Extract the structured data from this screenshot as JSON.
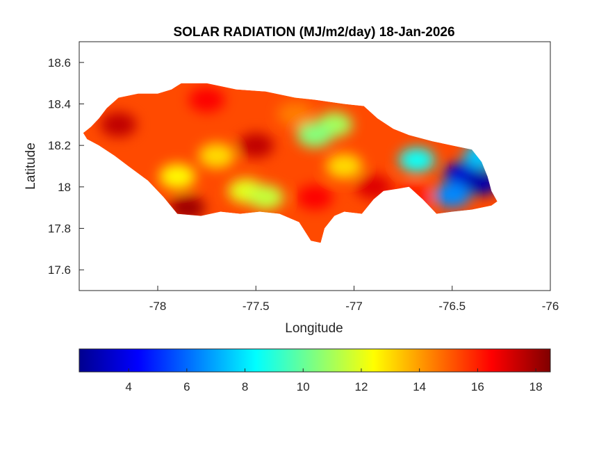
{
  "title": "SOLAR RADIATION (MJ/m2/day) 18-Jan-2026",
  "map": {
    "xlabel": "Longitude",
    "ylabel": "Latitude",
    "xlim": [
      -78.4,
      -76
    ],
    "ylim": [
      17.5,
      18.7
    ],
    "xticks": [
      "-78",
      "-77.5",
      "-77",
      "-76.5",
      "-76"
    ],
    "yticks": [
      "17.6",
      "17.8",
      "18",
      "18.2",
      "18.4",
      "18.6"
    ],
    "region": "Jamaica",
    "outline_lonlat": [
      [
        -78.38,
        18.26
      ],
      [
        -78.34,
        18.29
      ],
      [
        -78.3,
        18.33
      ],
      [
        -78.26,
        18.38
      ],
      [
        -78.2,
        18.43
      ],
      [
        -78.1,
        18.45
      ],
      [
        -78.0,
        18.45
      ],
      [
        -77.93,
        18.47
      ],
      [
        -77.88,
        18.5
      ],
      [
        -77.75,
        18.5
      ],
      [
        -77.6,
        18.47
      ],
      [
        -77.45,
        18.46
      ],
      [
        -77.3,
        18.43
      ],
      [
        -77.2,
        18.42
      ],
      [
        -77.05,
        18.4
      ],
      [
        -76.95,
        18.39
      ],
      [
        -76.88,
        18.33
      ],
      [
        -76.8,
        18.28
      ],
      [
        -76.72,
        18.25
      ],
      [
        -76.6,
        18.22
      ],
      [
        -76.5,
        18.2
      ],
      [
        -76.4,
        18.18
      ],
      [
        -76.35,
        18.12
      ],
      [
        -76.32,
        18.05
      ],
      [
        -76.3,
        17.98
      ],
      [
        -76.27,
        17.93
      ],
      [
        -76.3,
        17.91
      ],
      [
        -76.4,
        17.89
      ],
      [
        -76.5,
        17.88
      ],
      [
        -76.58,
        17.87
      ],
      [
        -76.65,
        17.94
      ],
      [
        -76.72,
        18.0
      ],
      [
        -76.78,
        17.99
      ],
      [
        -76.85,
        17.98
      ],
      [
        -76.9,
        17.94
      ],
      [
        -76.96,
        17.87
      ],
      [
        -77.05,
        17.88
      ],
      [
        -77.1,
        17.86
      ],
      [
        -77.15,
        17.8
      ],
      [
        -77.17,
        17.73
      ],
      [
        -77.22,
        17.74
      ],
      [
        -77.28,
        17.83
      ],
      [
        -77.38,
        17.87
      ],
      [
        -77.48,
        17.88
      ],
      [
        -77.58,
        17.87
      ],
      [
        -77.68,
        17.88
      ],
      [
        -77.78,
        17.86
      ],
      [
        -77.9,
        17.87
      ],
      [
        -77.97,
        17.95
      ],
      [
        -78.05,
        18.03
      ],
      [
        -78.15,
        18.1
      ],
      [
        -78.22,
        18.15
      ],
      [
        -78.3,
        18.2
      ],
      [
        -78.36,
        18.23
      ]
    ],
    "hotspots": [
      {
        "lon": -76.45,
        "lat": 18.06,
        "value": 3.5
      },
      {
        "lon": -76.35,
        "lat": 18.02,
        "value": 2.8
      },
      {
        "lon": -76.5,
        "lat": 17.96,
        "value": 6.5
      },
      {
        "lon": -76.68,
        "lat": 18.13,
        "value": 8.5
      },
      {
        "lon": -76.35,
        "lat": 18.15,
        "value": 7.5
      },
      {
        "lon": -77.1,
        "lat": 18.3,
        "value": 11
      },
      {
        "lon": -77.2,
        "lat": 18.25,
        "value": 10.5
      },
      {
        "lon": -77.55,
        "lat": 17.98,
        "value": 12
      },
      {
        "lon": -77.45,
        "lat": 17.95,
        "value": 11.5
      },
      {
        "lon": -77.9,
        "lat": 18.05,
        "value": 12.5
      },
      {
        "lon": -77.7,
        "lat": 18.15,
        "value": 13
      },
      {
        "lon": -77.05,
        "lat": 18.1,
        "value": 13
      },
      {
        "lon": -77.5,
        "lat": 18.2,
        "value": 17.5
      },
      {
        "lon": -78.2,
        "lat": 18.3,
        "value": 17.5
      },
      {
        "lon": -77.75,
        "lat": 18.42,
        "value": 16.5
      },
      {
        "lon": -77.85,
        "lat": 17.9,
        "value": 18
      },
      {
        "lon": -77.3,
        "lat": 18.35,
        "value": 14.5
      },
      {
        "lon": -76.9,
        "lat": 18.0,
        "value": 17
      },
      {
        "lon": -77.2,
        "lat": 17.95,
        "value": 16.5
      },
      {
        "lon": -76.7,
        "lat": 17.95,
        "value": 16
      }
    ]
  },
  "colorbar": {
    "colormap": "jet",
    "range": [
      2.3,
      18.5
    ],
    "ticks": [
      "4",
      "6",
      "8",
      "10",
      "12",
      "14",
      "16",
      "18"
    ],
    "colors": [
      "#00008f",
      "#0000ff",
      "#00ffff",
      "#ffff00",
      "#ff0000",
      "#800000"
    ]
  }
}
